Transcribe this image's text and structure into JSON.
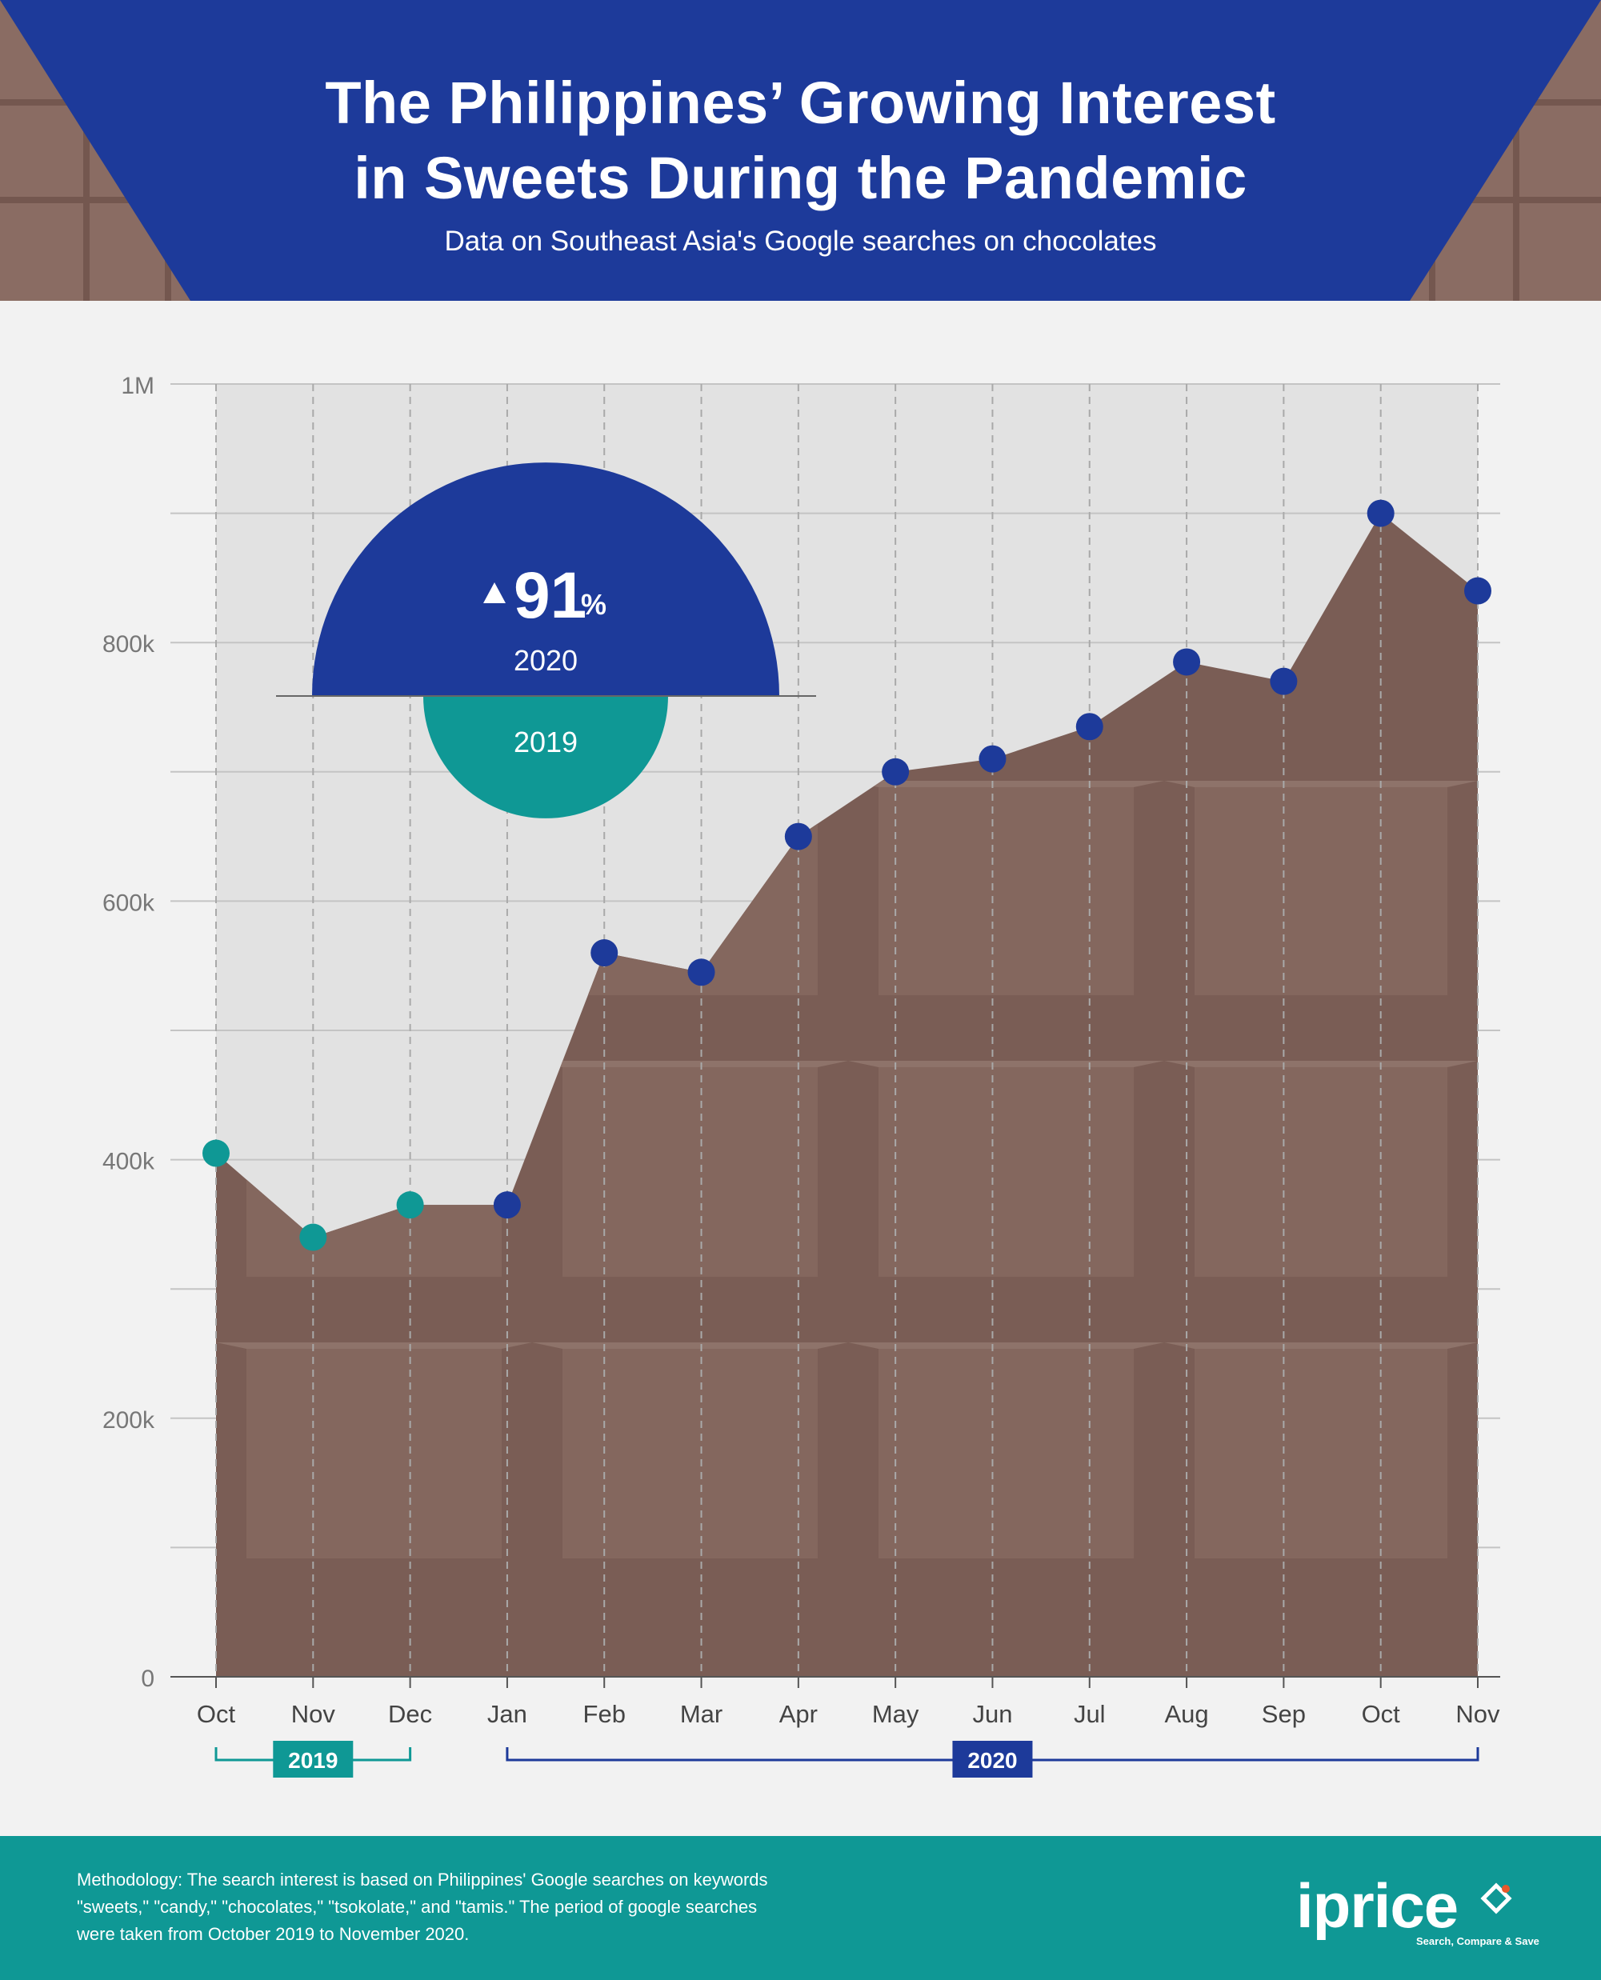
{
  "header": {
    "title_line1": "The Philippines’ Growing Interest",
    "title_line2": "in Sweets During the Pandemic",
    "subtitle": "Data on Southeast Asia's Google searches on chocolates"
  },
  "chart_data": {
    "type": "area",
    "title": "The Philippines’ Growing Interest in Sweets During the Pandemic",
    "subtitle": "Data on Southeast Asia's Google searches on chocolates",
    "categories": [
      "Oct",
      "Nov",
      "Dec",
      "Jan",
      "Feb",
      "Mar",
      "Apr",
      "May",
      "Jun",
      "Jul",
      "Aug",
      "Sep",
      "Oct",
      "Nov"
    ],
    "values": [
      405000,
      340000,
      365000,
      365000,
      560000,
      545000,
      650000,
      700000,
      710000,
      735000,
      785000,
      770000,
      900000,
      840000
    ],
    "point_years": [
      "2019",
      "2019",
      "2019",
      "2020",
      "2020",
      "2020",
      "2020",
      "2020",
      "2020",
      "2020",
      "2020",
      "2020",
      "2020",
      "2020"
    ],
    "ylim": [
      0,
      1000000
    ],
    "yticks": [
      {
        "value": 0,
        "label": "0"
      },
      {
        "value": 200000,
        "label": "200k"
      },
      {
        "value": 400000,
        "label": "400k"
      },
      {
        "value": 600000,
        "label": "600k"
      },
      {
        "value": 800000,
        "label": "800k"
      },
      {
        "value": 1000000,
        "label": "1M"
      }
    ],
    "minor_gridlines": [
      100000,
      300000,
      500000,
      700000,
      900000
    ],
    "year_groups": [
      {
        "label": "2019",
        "start_index": 0,
        "end_index": 2,
        "color": "#0f9895"
      },
      {
        "label": "2020",
        "start_index": 3,
        "end_index": 13,
        "color": "#1d3a9a"
      }
    ],
    "annotation": {
      "change": "91",
      "unit": "%",
      "direction": "up",
      "top_label": "2020",
      "bottom_label": "2019"
    },
    "grid": true,
    "colors": {
      "area": "#7a5d55",
      "point_2019": "#0f9895",
      "point_2020": "#1d3a9a",
      "plot_background": "#e2e2e2"
    }
  },
  "footer": {
    "methodology": "Methodology: The search interest is based on Philippines' Google searches on keywords \"sweets,\" \"candy,\" \"chocolates,\" \"tsokolate,\" and \"tamis.\" The period of google searches were taken from October 2019 to November 2020.",
    "logo_text": "iprice",
    "logo_tagline": "Search, Compare & Save"
  },
  "colors": {
    "brand_blue": "#1d3a9a",
    "brand_teal": "#0f9895",
    "chocolate": "#7a5d55"
  }
}
